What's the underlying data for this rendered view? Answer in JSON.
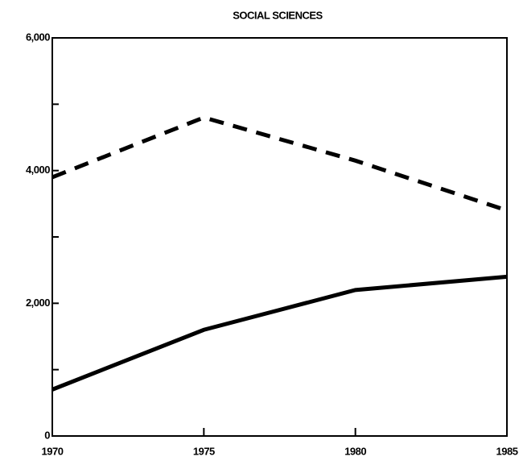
{
  "chart_data": {
    "type": "line",
    "title": "SOCIAL SCIENCES",
    "x": [
      1970,
      1975,
      1980,
      1985
    ],
    "xlim": [
      1970,
      1985
    ],
    "xticks": [
      1970,
      1975,
      1980,
      1985
    ],
    "ylim": [
      0,
      6000
    ],
    "yticks": [
      0,
      {
        "value": 2000,
        "label": "2,000"
      },
      {
        "value": 4000,
        "label": "4,000"
      },
      {
        "value": 6000,
        "label": "6,000"
      }
    ],
    "yminor": [
      1000,
      3000,
      5000
    ],
    "series": [
      {
        "color": "#000000",
        "style": "dashed",
        "values": [
          3900,
          4800,
          4150,
          3400
        ]
      },
      {
        "color": "#000000",
        "style": "solid",
        "values": [
          700,
          1600,
          2200,
          2400
        ]
      }
    ]
  }
}
